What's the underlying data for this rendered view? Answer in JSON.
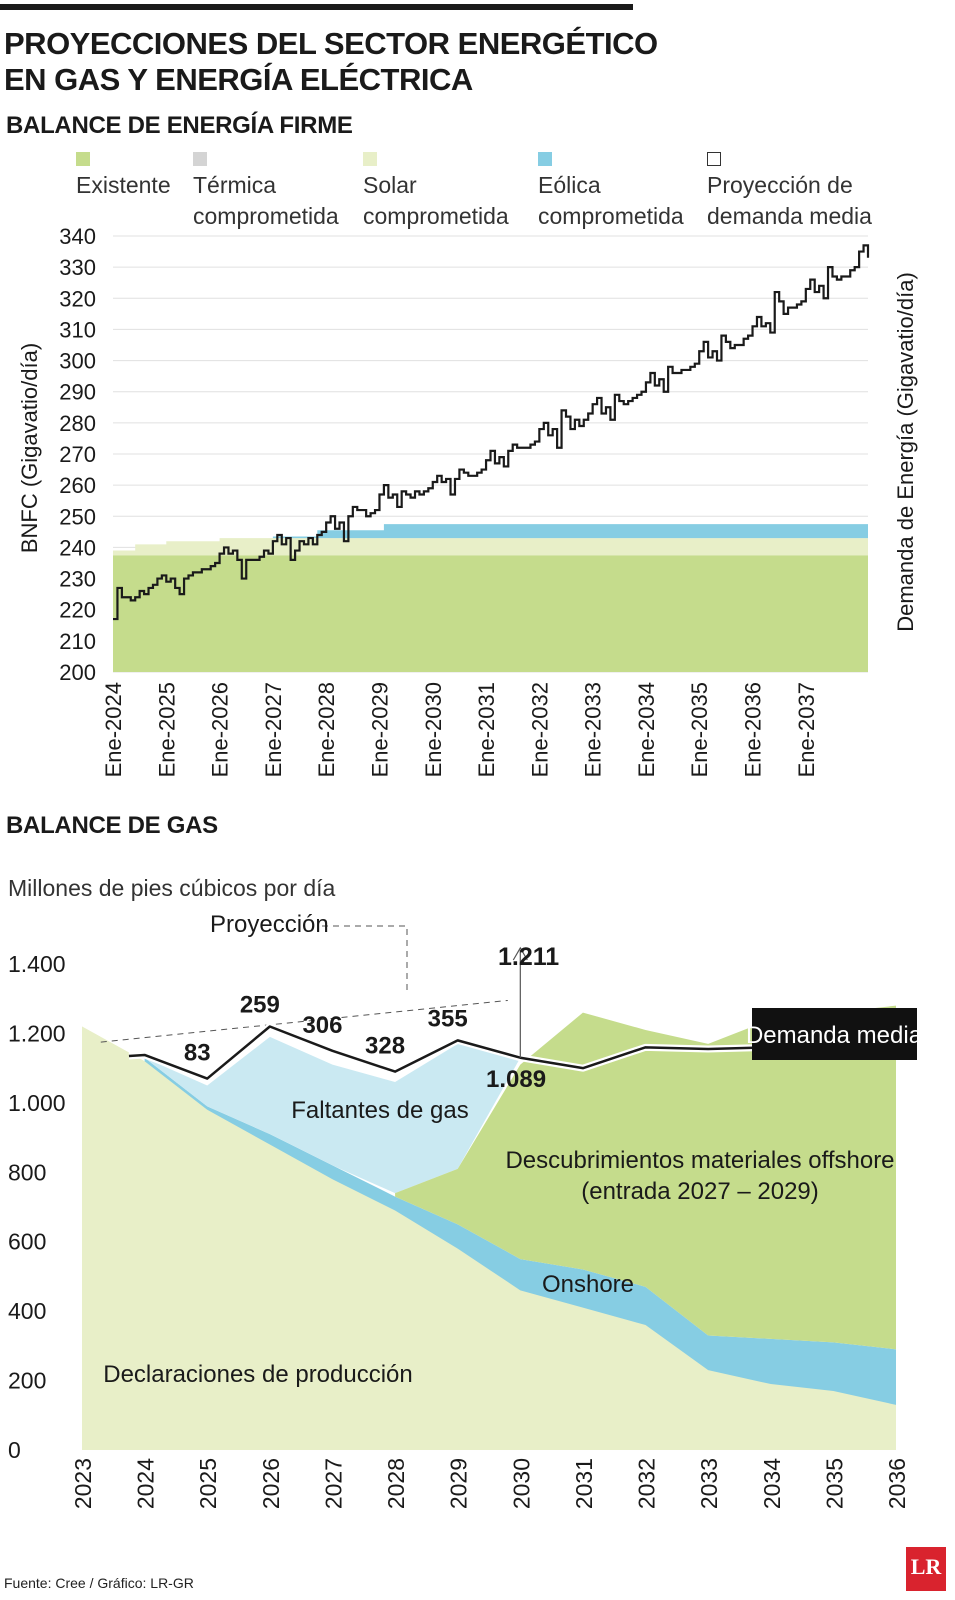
{
  "title_line1": "PROYECCIONES DEL SECTOR ENERGÉTICO",
  "title_line2": "EN GAS Y ENERGÍA ELÉCTRICA",
  "footer": "Fuente: Cree / Gráfico: LR-GR",
  "logo": "LR",
  "colors": {
    "existente": "#c5dc8c",
    "termica": "#d4d4d4",
    "solar": "#e8efc8",
    "eolica": "#86cde3",
    "demanda": "#1a1a1a",
    "faltantes": "#cae9f2",
    "offshore": "#c5dc8c",
    "onshore": "#86cde3",
    "declaraciones": "#e8efc8"
  },
  "chart_data": [
    {
      "type": "area",
      "title": "BALANCE DE ENERGÍA FIRME",
      "ylabel": "BNFC (Gigavatio/día)",
      "ylabel_right": "Demanda de Energía (Gigavatio/día)",
      "ylim": [
        200,
        340
      ],
      "yticks": [
        200,
        210,
        220,
        230,
        240,
        250,
        260,
        270,
        280,
        290,
        300,
        310,
        320,
        330,
        340
      ],
      "grid": true,
      "legend_position": "top",
      "x_range": [
        "2024-01",
        "2038-03"
      ],
      "x_ticks": [
        "Ene-2024",
        "Ene-2025",
        "Ene-2026",
        "Ene-2027",
        "Ene-2028",
        "Ene-2029",
        "Ene-2030",
        "Ene-2031",
        "Ene-2032",
        "Ene-2033",
        "Ene-2034",
        "Ene-2035",
        "Ene-2036",
        "Ene-2037"
      ],
      "legend": [
        "Existente",
        "Térmica\ncomprometida",
        "Solar\ncomprometida",
        "Eólica\ncomprometida",
        "Proyección de\ndemanda media"
      ],
      "stacked_series": [
        {
          "name": "Existente",
          "color_key": "existente",
          "points": [
            [
              "2024-01",
              237.5
            ],
            [
              "2038-03",
              237.5
            ]
          ]
        },
        {
          "name": "Térmica comprometida",
          "color_key": "termica",
          "points": [
            [
              "2024-01",
              0
            ],
            [
              "2038-03",
              0
            ]
          ]
        },
        {
          "name": "Solar comprometida",
          "color_key": "solar",
          "points": [
            [
              "2024-01",
              1.5
            ],
            [
              "2024-06",
              3.5
            ],
            [
              "2025-01",
              4.5
            ],
            [
              "2026-01",
              5.5
            ],
            [
              "2038-03",
              5.5
            ]
          ]
        },
        {
          "name": "Eólica comprometida",
          "color_key": "eolica",
          "points": [
            [
              "2024-01",
              0
            ],
            [
              "2026-12",
              0
            ],
            [
              "2027-01",
              0.5
            ],
            [
              "2027-10",
              0.5
            ],
            [
              "2027-11",
              2.5
            ],
            [
              "2029-01",
              2.5
            ],
            [
              "2029-02",
              4.5
            ],
            [
              "2038-03",
              4.5
            ]
          ]
        }
      ],
      "demand_series": {
        "name": "Proyección de demanda media",
        "color_key": "demanda",
        "points": [
          [
            "2024-01",
            217
          ],
          [
            "2024-02",
            227
          ],
          [
            "2024-03",
            224
          ],
          [
            "2024-04",
            224
          ],
          [
            "2024-05",
            223
          ],
          [
            "2024-06",
            224
          ],
          [
            "2024-07",
            226
          ],
          [
            "2024-08",
            225
          ],
          [
            "2024-09",
            227
          ],
          [
            "2024-10",
            228
          ],
          [
            "2024-11",
            230
          ],
          [
            "2024-12",
            231
          ],
          [
            "2025-01",
            229
          ],
          [
            "2025-02",
            230
          ],
          [
            "2025-03",
            227
          ],
          [
            "2025-04",
            225
          ],
          [
            "2025-05",
            230
          ],
          [
            "2025-06",
            231
          ],
          [
            "2025-07",
            232
          ],
          [
            "2025-08",
            232
          ],
          [
            "2025-09",
            233
          ],
          [
            "2025-10",
            233
          ],
          [
            "2025-11",
            234
          ],
          [
            "2025-12",
            235
          ],
          [
            "2026-01",
            238
          ],
          [
            "2026-02",
            240
          ],
          [
            "2026-03",
            238
          ],
          [
            "2026-04",
            239
          ],
          [
            "2026-05",
            236
          ],
          [
            "2026-06",
            230
          ],
          [
            "2026-07",
            236
          ],
          [
            "2026-08",
            236
          ],
          [
            "2026-09",
            236
          ],
          [
            "2026-10",
            237
          ],
          [
            "2026-11",
            239
          ],
          [
            "2026-12",
            238
          ],
          [
            "2027-01",
            242
          ],
          [
            "2027-02",
            244
          ],
          [
            "2027-03",
            241
          ],
          [
            "2027-04",
            243
          ],
          [
            "2027-05",
            236
          ],
          [
            "2027-06",
            239
          ],
          [
            "2027-07",
            242
          ],
          [
            "2027-08",
            241
          ],
          [
            "2027-09",
            243
          ],
          [
            "2027-10",
            241
          ],
          [
            "2027-11",
            244
          ],
          [
            "2027-12",
            245
          ],
          [
            "2028-01",
            248
          ],
          [
            "2028-02",
            250
          ],
          [
            "2028-03",
            246
          ],
          [
            "2028-04",
            248
          ],
          [
            "2028-05",
            242
          ],
          [
            "2028-06",
            250
          ],
          [
            "2028-07",
            253
          ],
          [
            "2028-08",
            252
          ],
          [
            "2028-09",
            252
          ],
          [
            "2028-10",
            250
          ],
          [
            "2028-11",
            251
          ],
          [
            "2028-12",
            252
          ],
          [
            "2029-01",
            257
          ],
          [
            "2029-02",
            260
          ],
          [
            "2029-03",
            256
          ],
          [
            "2029-04",
            257
          ],
          [
            "2029-05",
            253
          ],
          [
            "2029-06",
            258
          ],
          [
            "2029-07",
            257
          ],
          [
            "2029-08",
            256
          ],
          [
            "2029-09",
            258
          ],
          [
            "2029-10",
            257
          ],
          [
            "2029-11",
            258
          ],
          [
            "2029-12",
            259
          ],
          [
            "2030-01",
            261
          ],
          [
            "2030-02",
            263
          ],
          [
            "2030-03",
            261
          ],
          [
            "2030-04",
            262
          ],
          [
            "2030-05",
            257
          ],
          [
            "2030-06",
            262
          ],
          [
            "2030-07",
            265
          ],
          [
            "2030-08",
            264
          ],
          [
            "2030-09",
            263
          ],
          [
            "2030-10",
            263
          ],
          [
            "2030-11",
            264
          ],
          [
            "2030-12",
            265
          ],
          [
            "2031-01",
            268
          ],
          [
            "2031-02",
            271
          ],
          [
            "2031-03",
            267
          ],
          [
            "2031-04",
            269
          ],
          [
            "2031-05",
            266
          ],
          [
            "2031-06",
            271
          ],
          [
            "2031-07",
            273
          ],
          [
            "2031-08",
            272
          ],
          [
            "2031-09",
            272
          ],
          [
            "2031-10",
            272
          ],
          [
            "2031-11",
            273
          ],
          [
            "2031-12",
            274
          ],
          [
            "2032-01",
            278
          ],
          [
            "2032-02",
            280
          ],
          [
            "2032-03",
            276
          ],
          [
            "2032-04",
            278
          ],
          [
            "2032-05",
            272
          ],
          [
            "2032-06",
            284
          ],
          [
            "2032-07",
            282
          ],
          [
            "2032-08",
            278
          ],
          [
            "2032-09",
            281
          ],
          [
            "2032-10",
            279
          ],
          [
            "2032-11",
            281
          ],
          [
            "2032-12",
            283
          ],
          [
            "2033-01",
            286
          ],
          [
            "2033-02",
            288
          ],
          [
            "2033-03",
            283
          ],
          [
            "2033-04",
            285
          ],
          [
            "2033-05",
            281
          ],
          [
            "2033-06",
            289
          ],
          [
            "2033-07",
            287
          ],
          [
            "2033-08",
            286
          ],
          [
            "2033-09",
            287
          ],
          [
            "2033-10",
            288
          ],
          [
            "2033-11",
            289
          ],
          [
            "2033-12",
            290
          ],
          [
            "2034-01",
            293
          ],
          [
            "2034-02",
            296
          ],
          [
            "2034-03",
            292
          ],
          [
            "2034-04",
            294
          ],
          [
            "2034-05",
            290
          ],
          [
            "2034-06",
            298
          ],
          [
            "2034-07",
            296
          ],
          [
            "2034-08",
            296
          ],
          [
            "2034-09",
            297
          ],
          [
            "2034-10",
            297
          ],
          [
            "2034-11",
            298
          ],
          [
            "2034-12",
            299
          ],
          [
            "2035-01",
            303
          ],
          [
            "2035-02",
            306
          ],
          [
            "2035-03",
            301
          ],
          [
            "2035-04",
            303
          ],
          [
            "2035-05",
            300
          ],
          [
            "2035-06",
            308
          ],
          [
            "2035-07",
            306
          ],
          [
            "2035-08",
            304
          ],
          [
            "2035-09",
            305
          ],
          [
            "2035-10",
            305
          ],
          [
            "2035-11",
            307
          ],
          [
            "2035-12",
            308
          ],
          [
            "2036-01",
            311
          ],
          [
            "2036-02",
            314
          ],
          [
            "2036-03",
            311
          ],
          [
            "2036-04",
            312
          ],
          [
            "2036-05",
            309
          ],
          [
            "2036-06",
            322
          ],
          [
            "2036-07",
            319
          ],
          [
            "2036-08",
            315
          ],
          [
            "2036-09",
            317
          ],
          [
            "2036-10",
            317
          ],
          [
            "2036-11",
            318
          ],
          [
            "2036-12",
            319
          ],
          [
            "2037-01",
            323
          ],
          [
            "2037-02",
            326
          ],
          [
            "2037-03",
            322
          ],
          [
            "2037-04",
            324
          ],
          [
            "2037-05",
            320
          ],
          [
            "2037-06",
            330
          ],
          [
            "2037-07",
            327
          ],
          [
            "2037-08",
            326
          ],
          [
            "2037-09",
            327
          ],
          [
            "2037-10",
            327
          ],
          [
            "2037-11",
            329
          ],
          [
            "2037-12",
            330
          ],
          [
            "2038-01",
            335
          ],
          [
            "2038-02",
            337
          ],
          [
            "2038-03",
            333
          ]
        ]
      }
    },
    {
      "type": "area",
      "title": "BALANCE DE GAS",
      "subtitle": "Millones de pies cúbicos por día",
      "ylim": [
        0,
        1400
      ],
      "yticks": [
        0,
        200,
        400,
        600,
        800,
        1000,
        1200,
        1400
      ],
      "ytick_labels": [
        "0",
        "200",
        "400",
        "600",
        "800",
        "1.000",
        "1.200",
        "1.400"
      ],
      "x": [
        2023,
        2024,
        2025,
        2026,
        2027,
        2028,
        2029,
        2030,
        2031,
        2032,
        2033,
        2034,
        2035,
        2036
      ],
      "x_tick_labels": [
        "2023",
        "2024",
        "2025",
        "2026",
        "2027",
        "2028",
        "2029",
        "2030",
        "2031",
        "2032",
        "2033",
        "2034",
        "2035",
        "2036"
      ],
      "area_series": [
        {
          "name": "Declaraciones de producción",
          "color_key": "declaraciones",
          "x": [
            2023,
            2024,
            2025,
            2026,
            2027,
            2028,
            2029,
            2030,
            2031,
            2032,
            2033,
            2034,
            2035,
            2036
          ],
          "values": [
            1220,
            1120,
            980,
            880,
            780,
            690,
            580,
            460,
            410,
            360,
            230,
            190,
            170,
            130
          ]
        },
        {
          "name": "Onshore",
          "color_key": "onshore",
          "x": [
            2024,
            2025,
            2026,
            2027,
            2028,
            2029,
            2030,
            2031,
            2032,
            2033,
            2034,
            2035,
            2036
          ],
          "values": [
            1130,
            990,
            910,
            820,
            730,
            650,
            550,
            520,
            470,
            330,
            320,
            310,
            290
          ]
        },
        {
          "name": "Descubrimientos materiales offshore (entrada 2027 – 2029)",
          "color_key": "offshore",
          "x": [
            2028,
            2029,
            2030,
            2031,
            2032,
            2033,
            2034,
            2035,
            2036
          ],
          "values": [
            740,
            810,
            1110,
            1260,
            1210,
            1170,
            1240,
            1260,
            1280
          ]
        },
        {
          "name": "Faltantes de gas",
          "color_key": "faltantes",
          "x": [
            2024,
            2025,
            2026,
            2027,
            2028,
            2029,
            2030
          ],
          "values": [
            1130,
            1050,
            1190,
            1110,
            1060,
            1170,
            1130
          ]
        }
      ],
      "demand_line": {
        "name": "Demanda media",
        "x": [
          2023.75,
          2024,
          2025,
          2026,
          2027,
          2028,
          2029,
          2030,
          2031,
          2032,
          2033,
          2034,
          2035
        ],
        "values": [
          1135,
          1138,
          1070,
          1220,
          1150,
          1090,
          1180,
          1130,
          1100,
          1160,
          1155,
          1160,
          1160
        ]
      },
      "projection_line": {
        "x": [
          2023.3,
          2029.8
        ],
        "values": [
          1175,
          1295
        ]
      },
      "gap_labels": [
        {
          "x": 2025,
          "y": 1070,
          "text": "83"
        },
        {
          "x": 2026,
          "y": 1220,
          "text": "259"
        },
        {
          "x": 2027,
          "y": 1150,
          "text": "306"
        },
        {
          "x": 2028,
          "y": 1090,
          "text": "328"
        },
        {
          "x": 2029,
          "y": 1180,
          "text": "355"
        }
      ],
      "annotations": {
        "proyeccion": "Proyección",
        "top_value": "1.211",
        "bottom_value": "1.089",
        "demanda_media": "Demanda media",
        "faltantes": "Faltantes de gas",
        "offshore_line1": "Descubrimientos materiales offshore",
        "offshore_line2": "(entrada 2027 – 2029)",
        "onshore": "Onshore",
        "declaraciones": "Declaraciones de producción"
      }
    }
  ]
}
